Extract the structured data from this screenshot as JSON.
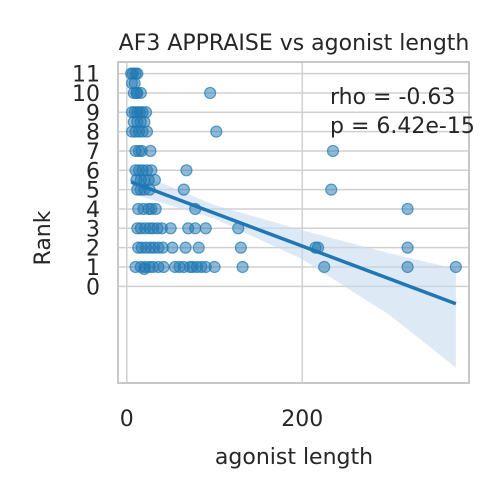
{
  "chart_data": {
    "type": "scatter",
    "title": "AF3 APPRAISE vs agonist length",
    "xlabel": "agonist length",
    "ylabel": "Rank",
    "xlim": [
      -10,
      390
    ],
    "ylim": [
      -5,
      11.6
    ],
    "xticks": [
      0,
      200
    ],
    "yticks": [
      0,
      1,
      2,
      3,
      4,
      5,
      6,
      7,
      8,
      9,
      10,
      11
    ],
    "grid": true,
    "annotations": [
      "rho = -0.63",
      "p = 6.42e-15"
    ],
    "colors": {
      "points": "#1f77b4",
      "line": "#1f77b4",
      "band": "#c6dbef",
      "grid": "#d0d0d0",
      "frame": "#c8c8c8"
    },
    "points": [
      [
        5,
        11
      ],
      [
        7,
        11
      ],
      [
        10,
        11
      ],
      [
        12,
        11
      ],
      [
        6,
        10.5
      ],
      [
        9,
        10.5
      ],
      [
        11,
        10
      ],
      [
        8,
        10
      ],
      [
        12,
        10
      ],
      [
        16,
        10
      ],
      [
        6,
        9
      ],
      [
        9,
        9
      ],
      [
        12,
        9
      ],
      [
        15,
        9
      ],
      [
        18,
        9
      ],
      [
        22,
        9
      ],
      [
        8,
        8.5
      ],
      [
        12,
        8.5
      ],
      [
        16,
        8.5
      ],
      [
        20,
        8.5
      ],
      [
        6,
        8
      ],
      [
        10,
        8
      ],
      [
        14,
        8
      ],
      [
        18,
        8
      ],
      [
        23,
        8
      ],
      [
        10,
        7
      ],
      [
        14,
        7
      ],
      [
        17,
        7
      ],
      [
        27,
        7
      ],
      [
        10,
        6
      ],
      [
        14,
        6
      ],
      [
        18,
        6
      ],
      [
        23,
        6
      ],
      [
        28,
        6
      ],
      [
        11,
        5.5
      ],
      [
        16,
        5.5
      ],
      [
        20,
        5.5
      ],
      [
        25,
        5.5
      ],
      [
        32,
        5.5
      ],
      [
        12,
        5
      ],
      [
        16,
        5
      ],
      [
        20,
        5
      ],
      [
        26,
        5
      ],
      [
        13,
        4
      ],
      [
        19,
        4
      ],
      [
        25,
        4
      ],
      [
        28,
        4
      ],
      [
        33,
        4
      ],
      [
        12,
        3
      ],
      [
        16,
        3
      ],
      [
        21,
        3
      ],
      [
        26,
        3
      ],
      [
        30,
        3
      ],
      [
        35,
        3
      ],
      [
        40,
        3
      ],
      [
        13,
        2
      ],
      [
        17,
        2
      ],
      [
        22,
        2
      ],
      [
        27,
        2
      ],
      [
        31,
        2
      ],
      [
        36,
        2
      ],
      [
        41,
        2
      ],
      [
        10,
        1
      ],
      [
        16,
        1
      ],
      [
        21,
        1
      ],
      [
        26,
        1
      ],
      [
        30,
        1
      ],
      [
        36,
        1
      ],
      [
        42,
        1
      ],
      [
        20,
        0.9
      ],
      [
        95,
        10
      ],
      [
        102,
        8
      ],
      [
        235,
        7
      ],
      [
        68,
        6
      ],
      [
        65,
        5
      ],
      [
        78,
        4
      ],
      [
        90,
        3
      ],
      [
        70,
        3
      ],
      [
        78,
        3
      ],
      [
        67,
        2
      ],
      [
        82,
        2
      ],
      [
        130,
        2
      ],
      [
        65,
        1
      ],
      [
        72,
        1
      ],
      [
        80,
        1
      ],
      [
        90,
        1
      ],
      [
        100,
        1
      ],
      [
        127,
        3
      ],
      [
        132,
        1
      ],
      [
        75,
        1
      ],
      [
        215,
        2
      ],
      [
        218,
        2
      ],
      [
        225,
        1
      ],
      [
        233,
        5
      ],
      [
        320,
        4
      ],
      [
        320,
        2
      ],
      [
        320,
        1
      ],
      [
        375,
        1
      ],
      [
        50,
        3
      ],
      [
        52,
        2
      ],
      [
        55,
        1
      ],
      [
        60,
        1
      ],
      [
        85,
        1
      ]
    ],
    "regression": {
      "x": [
        5,
        375
      ],
      "y": [
        5.4,
        -0.9
      ]
    },
    "band": {
      "upper": [
        [
          5,
          6.0
        ],
        [
          100,
          4.2
        ],
        [
          200,
          2.9
        ],
        [
          300,
          1.7
        ],
        [
          375,
          0.9
        ]
      ],
      "lower": [
        [
          5,
          4.8
        ],
        [
          100,
          3.5
        ],
        [
          200,
          1.4
        ],
        [
          300,
          -1.5
        ],
        [
          375,
          -4.2
        ]
      ]
    }
  }
}
